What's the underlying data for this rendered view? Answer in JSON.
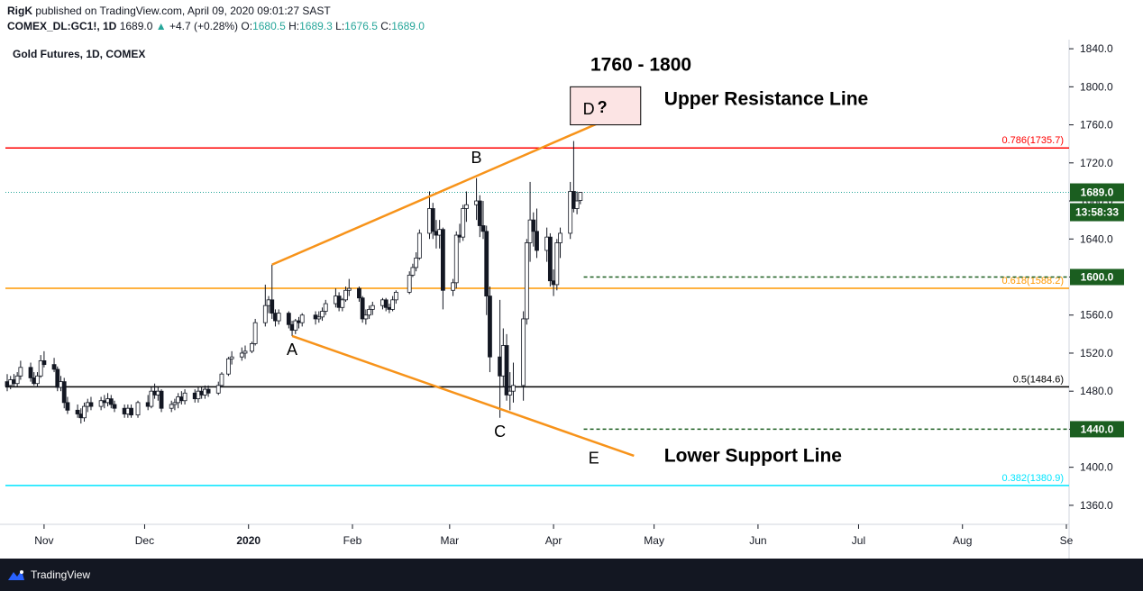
{
  "header": {
    "publisher": "RigK",
    "published_text": "published on TradingView.com, April 09, 2020 09:01:27 SAST",
    "symbol": "COMEX_DL:GC1!, 1D",
    "last": "1689.0",
    "change_arrow": "▲",
    "change": "+4.7 (+0.28%)",
    "o_label": "O:",
    "o_val": "1680.5",
    "h_label": "H:",
    "h_val": "1689.3",
    "l_label": "L:",
    "l_val": "1676.5",
    "c_label": "C:",
    "c_val": "1689.0"
  },
  "chart_title": "Gold Futures, 1D, COMEX",
  "footer": {
    "brand": "TradingView",
    "logo_icon": "tradingview-logo-icon"
  },
  "colors": {
    "up": "#26a69a",
    "down": "#ef5350",
    "wick": "#131722",
    "fib_0786": "#ff0000",
    "fib_0618": "#ff9800",
    "fib_05": "#000000",
    "fib_0382": "#00e5ff",
    "trend": "#f7931a",
    "level_box": "#1b5e20",
    "countdown_box": "#1b5e20"
  },
  "chart_data": {
    "type": "candlestick",
    "title": "Gold Futures, 1D, COMEX",
    "ylim": [
      1340,
      1860
    ],
    "y_ticks": [
      1360,
      1400,
      1440,
      1480,
      1520,
      1560,
      1600,
      1640,
      1680,
      1720,
      1760,
      1800,
      1840
    ],
    "y_tick_labels": [
      "1360.0",
      "1400.0",
      "1440.0",
      "1480.0",
      "1520.0",
      "1560.0",
      "1600.0",
      "1640.0",
      "1680.0",
      "1720.0",
      "1760.0",
      "1800.0",
      "1840.0"
    ],
    "x_start": "2019-10-21",
    "x_end": "2020-09-01",
    "x_ticks": [
      {
        "date": "2019-11-01",
        "label": "Nov",
        "bold": false
      },
      {
        "date": "2019-12-01",
        "label": "Dec",
        "bold": false
      },
      {
        "date": "2020-01-01",
        "label": "2020",
        "bold": true
      },
      {
        "date": "2020-02-01",
        "label": "Feb",
        "bold": false
      },
      {
        "date": "2020-03-01",
        "label": "Mar",
        "bold": false
      },
      {
        "date": "2020-04-01",
        "label": "Apr",
        "bold": false
      },
      {
        "date": "2020-05-01",
        "label": "May",
        "bold": false
      },
      {
        "date": "2020-06-01",
        "label": "Jun",
        "bold": false
      },
      {
        "date": "2020-07-01",
        "label": "Jul",
        "bold": false
      },
      {
        "date": "2020-08-01",
        "label": "Aug",
        "bold": false
      },
      {
        "date": "2020-09-01",
        "label": "Se",
        "bold": false
      }
    ],
    "candles": [
      {
        "d": "2019-10-21",
        "o": 1490,
        "h": 1498,
        "l": 1480,
        "c": 1485
      },
      {
        "d": "2019-10-22",
        "o": 1486,
        "h": 1496,
        "l": 1482,
        "c": 1492
      },
      {
        "d": "2019-10-23",
        "o": 1492,
        "h": 1498,
        "l": 1484,
        "c": 1488
      },
      {
        "d": "2019-10-24",
        "o": 1488,
        "h": 1500,
        "l": 1485,
        "c": 1496
      },
      {
        "d": "2019-10-25",
        "o": 1496,
        "h": 1512,
        "l": 1492,
        "c": 1505
      },
      {
        "d": "2019-10-28",
        "o": 1505,
        "h": 1510,
        "l": 1490,
        "c": 1494
      },
      {
        "d": "2019-10-29",
        "o": 1494,
        "h": 1500,
        "l": 1486,
        "c": 1488
      },
      {
        "d": "2019-10-30",
        "o": 1488,
        "h": 1500,
        "l": 1484,
        "c": 1496
      },
      {
        "d": "2019-10-31",
        "o": 1496,
        "h": 1518,
        "l": 1494,
        "c": 1512
      },
      {
        "d": "2019-11-01",
        "o": 1512,
        "h": 1522,
        "l": 1505,
        "c": 1508
      },
      {
        "d": "2019-11-04",
        "o": 1508,
        "h": 1515,
        "l": 1500,
        "c": 1503
      },
      {
        "d": "2019-11-05",
        "o": 1503,
        "h": 1506,
        "l": 1480,
        "c": 1484
      },
      {
        "d": "2019-11-06",
        "o": 1484,
        "h": 1496,
        "l": 1480,
        "c": 1490
      },
      {
        "d": "2019-11-07",
        "o": 1490,
        "h": 1494,
        "l": 1462,
        "c": 1468
      },
      {
        "d": "2019-11-08",
        "o": 1468,
        "h": 1474,
        "l": 1456,
        "c": 1460
      },
      {
        "d": "2019-11-11",
        "o": 1460,
        "h": 1466,
        "l": 1452,
        "c": 1456
      },
      {
        "d": "2019-11-12",
        "o": 1456,
        "h": 1462,
        "l": 1446,
        "c": 1452
      },
      {
        "d": "2019-11-13",
        "o": 1452,
        "h": 1468,
        "l": 1448,
        "c": 1464
      },
      {
        "d": "2019-11-14",
        "o": 1464,
        "h": 1472,
        "l": 1458,
        "c": 1468
      },
      {
        "d": "2019-11-15",
        "o": 1468,
        "h": 1474,
        "l": 1460,
        "c": 1464
      },
      {
        "d": "2019-11-18",
        "o": 1464,
        "h": 1474,
        "l": 1460,
        "c": 1470
      },
      {
        "d": "2019-11-19",
        "o": 1470,
        "h": 1476,
        "l": 1462,
        "c": 1468
      },
      {
        "d": "2019-11-20",
        "o": 1468,
        "h": 1478,
        "l": 1464,
        "c": 1472
      },
      {
        "d": "2019-11-21",
        "o": 1472,
        "h": 1476,
        "l": 1462,
        "c": 1466
      },
      {
        "d": "2019-11-22",
        "o": 1466,
        "h": 1470,
        "l": 1458,
        "c": 1462
      },
      {
        "d": "2019-11-25",
        "o": 1462,
        "h": 1466,
        "l": 1452,
        "c": 1456
      },
      {
        "d": "2019-11-26",
        "o": 1456,
        "h": 1466,
        "l": 1452,
        "c": 1462
      },
      {
        "d": "2019-11-27",
        "o": 1462,
        "h": 1466,
        "l": 1452,
        "c": 1455
      },
      {
        "d": "2019-11-29",
        "o": 1455,
        "h": 1470,
        "l": 1452,
        "c": 1468
      },
      {
        "d": "2019-12-02",
        "o": 1468,
        "h": 1476,
        "l": 1460,
        "c": 1464
      },
      {
        "d": "2019-12-03",
        "o": 1464,
        "h": 1484,
        "l": 1462,
        "c": 1480
      },
      {
        "d": "2019-12-04",
        "o": 1480,
        "h": 1488,
        "l": 1472,
        "c": 1476
      },
      {
        "d": "2019-12-05",
        "o": 1476,
        "h": 1484,
        "l": 1470,
        "c": 1480
      },
      {
        "d": "2019-12-06",
        "o": 1480,
        "h": 1482,
        "l": 1458,
        "c": 1462
      },
      {
        "d": "2019-12-09",
        "o": 1462,
        "h": 1470,
        "l": 1458,
        "c": 1466
      },
      {
        "d": "2019-12-10",
        "o": 1466,
        "h": 1472,
        "l": 1460,
        "c": 1468
      },
      {
        "d": "2019-12-11",
        "o": 1468,
        "h": 1478,
        "l": 1462,
        "c": 1474
      },
      {
        "d": "2019-12-12",
        "o": 1474,
        "h": 1480,
        "l": 1466,
        "c": 1470
      },
      {
        "d": "2019-12-13",
        "o": 1470,
        "h": 1482,
        "l": 1466,
        "c": 1478
      },
      {
        "d": "2019-12-16",
        "o": 1478,
        "h": 1482,
        "l": 1468,
        "c": 1472
      },
      {
        "d": "2019-12-17",
        "o": 1472,
        "h": 1484,
        "l": 1468,
        "c": 1480
      },
      {
        "d": "2019-12-18",
        "o": 1480,
        "h": 1484,
        "l": 1472,
        "c": 1476
      },
      {
        "d": "2019-12-19",
        "o": 1476,
        "h": 1486,
        "l": 1472,
        "c": 1482
      },
      {
        "d": "2019-12-20",
        "o": 1482,
        "h": 1486,
        "l": 1474,
        "c": 1478
      },
      {
        "d": "2019-12-23",
        "o": 1478,
        "h": 1490,
        "l": 1476,
        "c": 1486
      },
      {
        "d": "2019-12-24",
        "o": 1486,
        "h": 1500,
        "l": 1484,
        "c": 1498
      },
      {
        "d": "2019-12-26",
        "o": 1498,
        "h": 1516,
        "l": 1496,
        "c": 1514
      },
      {
        "d": "2019-12-27",
        "o": 1514,
        "h": 1522,
        "l": 1508,
        "c": 1516
      },
      {
        "d": "2019-12-30",
        "o": 1516,
        "h": 1526,
        "l": 1512,
        "c": 1520
      },
      {
        "d": "2019-12-31",
        "o": 1520,
        "h": 1528,
        "l": 1514,
        "c": 1522
      },
      {
        "d": "2020-01-02",
        "o": 1522,
        "h": 1532,
        "l": 1520,
        "c": 1530
      },
      {
        "d": "2020-01-03",
        "o": 1530,
        "h": 1556,
        "l": 1528,
        "c": 1552
      },
      {
        "d": "2020-01-06",
        "o": 1552,
        "h": 1592,
        "l": 1548,
        "c": 1570
      },
      {
        "d": "2020-01-07",
        "o": 1570,
        "h": 1580,
        "l": 1562,
        "c": 1576
      },
      {
        "d": "2020-01-08",
        "o": 1576,
        "h": 1613,
        "l": 1556,
        "c": 1562
      },
      {
        "d": "2020-01-09",
        "o": 1562,
        "h": 1566,
        "l": 1548,
        "c": 1554
      },
      {
        "d": "2020-01-10",
        "o": 1554,
        "h": 1566,
        "l": 1550,
        "c": 1562
      },
      {
        "d": "2020-01-13",
        "o": 1562,
        "h": 1564,
        "l": 1546,
        "c": 1550
      },
      {
        "d": "2020-01-14",
        "o": 1550,
        "h": 1554,
        "l": 1538,
        "c": 1544
      },
      {
        "d": "2020-01-15",
        "o": 1544,
        "h": 1556,
        "l": 1540,
        "c": 1554
      },
      {
        "d": "2020-01-16",
        "o": 1554,
        "h": 1558,
        "l": 1546,
        "c": 1552
      },
      {
        "d": "2020-01-17",
        "o": 1552,
        "h": 1562,
        "l": 1548,
        "c": 1560
      },
      {
        "d": "2020-01-21",
        "o": 1560,
        "h": 1564,
        "l": 1550,
        "c": 1556
      },
      {
        "d": "2020-01-22",
        "o": 1556,
        "h": 1564,
        "l": 1552,
        "c": 1558
      },
      {
        "d": "2020-01-23",
        "o": 1558,
        "h": 1568,
        "l": 1554,
        "c": 1564
      },
      {
        "d": "2020-01-24",
        "o": 1564,
        "h": 1576,
        "l": 1560,
        "c": 1572
      },
      {
        "d": "2020-01-27",
        "o": 1572,
        "h": 1588,
        "l": 1568,
        "c": 1580
      },
      {
        "d": "2020-01-28",
        "o": 1580,
        "h": 1584,
        "l": 1564,
        "c": 1568
      },
      {
        "d": "2020-01-29",
        "o": 1568,
        "h": 1578,
        "l": 1564,
        "c": 1576
      },
      {
        "d": "2020-01-30",
        "o": 1576,
        "h": 1590,
        "l": 1574,
        "c": 1586
      },
      {
        "d": "2020-01-31",
        "o": 1586,
        "h": 1598,
        "l": 1580,
        "c": 1588
      },
      {
        "d": "2020-02-03",
        "o": 1588,
        "h": 1590,
        "l": 1574,
        "c": 1578
      },
      {
        "d": "2020-02-04",
        "o": 1578,
        "h": 1580,
        "l": 1552,
        "c": 1556
      },
      {
        "d": "2020-02-05",
        "o": 1556,
        "h": 1566,
        "l": 1550,
        "c": 1560
      },
      {
        "d": "2020-02-06",
        "o": 1560,
        "h": 1570,
        "l": 1556,
        "c": 1566
      },
      {
        "d": "2020-02-07",
        "o": 1566,
        "h": 1574,
        "l": 1560,
        "c": 1570
      },
      {
        "d": "2020-02-10",
        "o": 1570,
        "h": 1578,
        "l": 1566,
        "c": 1576
      },
      {
        "d": "2020-02-11",
        "o": 1576,
        "h": 1578,
        "l": 1564,
        "c": 1568
      },
      {
        "d": "2020-02-12",
        "o": 1568,
        "h": 1572,
        "l": 1562,
        "c": 1566
      },
      {
        "d": "2020-02-13",
        "o": 1566,
        "h": 1580,
        "l": 1564,
        "c": 1576
      },
      {
        "d": "2020-02-14",
        "o": 1576,
        "h": 1586,
        "l": 1572,
        "c": 1584
      },
      {
        "d": "2020-02-18",
        "o": 1584,
        "h": 1606,
        "l": 1582,
        "c": 1602
      },
      {
        "d": "2020-02-19",
        "o": 1602,
        "h": 1614,
        "l": 1600,
        "c": 1610
      },
      {
        "d": "2020-02-20",
        "o": 1610,
        "h": 1626,
        "l": 1606,
        "c": 1620
      },
      {
        "d": "2020-02-21",
        "o": 1620,
        "h": 1650,
        "l": 1618,
        "c": 1646
      },
      {
        "d": "2020-02-24",
        "o": 1646,
        "h": 1690,
        "l": 1640,
        "c": 1672
      },
      {
        "d": "2020-02-25",
        "o": 1672,
        "h": 1678,
        "l": 1640,
        "c": 1648
      },
      {
        "d": "2020-02-26",
        "o": 1648,
        "h": 1660,
        "l": 1630,
        "c": 1644
      },
      {
        "d": "2020-02-27",
        "o": 1644,
        "h": 1660,
        "l": 1630,
        "c": 1650
      },
      {
        "d": "2020-02-28",
        "o": 1650,
        "h": 1652,
        "l": 1566,
        "c": 1586
      },
      {
        "d": "2020-03-02",
        "o": 1586,
        "h": 1598,
        "l": 1580,
        "c": 1594
      },
      {
        "d": "2020-03-03",
        "o": 1594,
        "h": 1648,
        "l": 1588,
        "c": 1644
      },
      {
        "d": "2020-03-04",
        "o": 1644,
        "h": 1656,
        "l": 1636,
        "c": 1642
      },
      {
        "d": "2020-03-05",
        "o": 1642,
        "h": 1676,
        "l": 1638,
        "c": 1672
      },
      {
        "d": "2020-03-06",
        "o": 1672,
        "h": 1690,
        "l": 1658,
        "c": 1676
      },
      {
        "d": "2020-03-09",
        "o": 1676,
        "h": 1704,
        "l": 1660,
        "c": 1680
      },
      {
        "d": "2020-03-10",
        "o": 1680,
        "h": 1686,
        "l": 1642,
        "c": 1654
      },
      {
        "d": "2020-03-11",
        "o": 1654,
        "h": 1680,
        "l": 1640,
        "c": 1648
      },
      {
        "d": "2020-03-12",
        "o": 1648,
        "h": 1654,
        "l": 1560,
        "c": 1580
      },
      {
        "d": "2020-03-13",
        "o": 1580,
        "h": 1590,
        "l": 1500,
        "c": 1516
      },
      {
        "d": "2020-03-16",
        "o": 1516,
        "h": 1576,
        "l": 1452,
        "c": 1496
      },
      {
        "d": "2020-03-17",
        "o": 1496,
        "h": 1546,
        "l": 1484,
        "c": 1528
      },
      {
        "d": "2020-03-18",
        "o": 1528,
        "h": 1540,
        "l": 1470,
        "c": 1476
      },
      {
        "d": "2020-03-19",
        "o": 1476,
        "h": 1500,
        "l": 1460,
        "c": 1480
      },
      {
        "d": "2020-03-20",
        "o": 1480,
        "h": 1510,
        "l": 1468,
        "c": 1486
      },
      {
        "d": "2020-03-23",
        "o": 1486,
        "h": 1564,
        "l": 1470,
        "c": 1556
      },
      {
        "d": "2020-03-24",
        "o": 1556,
        "h": 1640,
        "l": 1550,
        "c": 1636
      },
      {
        "d": "2020-03-25",
        "o": 1636,
        "h": 1700,
        "l": 1616,
        "c": 1660
      },
      {
        "d": "2020-03-26",
        "o": 1660,
        "h": 1668,
        "l": 1632,
        "c": 1648
      },
      {
        "d": "2020-03-27",
        "o": 1648,
        "h": 1672,
        "l": 1620,
        "c": 1628
      },
      {
        "d": "2020-03-30",
        "o": 1628,
        "h": 1652,
        "l": 1616,
        "c": 1642
      },
      {
        "d": "2020-03-31",
        "o": 1642,
        "h": 1646,
        "l": 1590,
        "c": 1596
      },
      {
        "d": "2020-04-01",
        "o": 1596,
        "h": 1608,
        "l": 1580,
        "c": 1592
      },
      {
        "d": "2020-04-02",
        "o": 1592,
        "h": 1640,
        "l": 1586,
        "c": 1636
      },
      {
        "d": "2020-04-03",
        "o": 1636,
        "h": 1652,
        "l": 1620,
        "c": 1646
      },
      {
        "d": "2020-04-06",
        "o": 1646,
        "h": 1700,
        "l": 1640,
        "c": 1690
      },
      {
        "d": "2020-04-07",
        "o": 1690,
        "h": 1743,
        "l": 1668,
        "c": 1672
      },
      {
        "d": "2020-04-08",
        "o": 1672,
        "h": 1690,
        "l": 1666,
        "c": 1680
      },
      {
        "d": "2020-04-09",
        "o": 1680.5,
        "h": 1689.3,
        "l": 1676.5,
        "c": 1689.0
      }
    ],
    "fib_levels": [
      {
        "ratio": "0.786",
        "value": 1735.7,
        "label": "0.786(1735.7)",
        "color": "#ff0000"
      },
      {
        "ratio": "0.618",
        "value": 1588.2,
        "label": "0.618(1588.2)",
        "color": "#ff9800"
      },
      {
        "ratio": "0.5",
        "value": 1484.6,
        "label": "0.5(1484.6)",
        "color": "#000000"
      },
      {
        "ratio": "0.382",
        "value": 1380.9,
        "label": "0.382(1380.9)",
        "color": "#00e5ff"
      }
    ],
    "last_price": {
      "value": 1689.0,
      "label": "1689.0",
      "countdown": "13:58:33"
    },
    "dotted_levels": [
      {
        "value": 1600.0,
        "label": "1600.0",
        "from": "2020-04-10"
      },
      {
        "value": 1440.0,
        "label": "1440.0",
        "from": "2020-04-10"
      }
    ],
    "trendlines": [
      {
        "name": "upper",
        "from": {
          "d": "2020-01-08",
          "v": 1613
        },
        "to": {
          "d": "2020-04-25",
          "v": 1778
        }
      },
      {
        "name": "lower",
        "from": {
          "d": "2020-01-14",
          "v": 1538
        },
        "to": {
          "d": "2020-04-25",
          "v": 1412
        }
      }
    ],
    "point_labels": [
      {
        "text": "A",
        "d": "2020-01-14",
        "v": 1518
      },
      {
        "text": "B",
        "d": "2020-03-09",
        "v": 1720
      },
      {
        "text": "C",
        "d": "2020-03-16",
        "v": 1432
      },
      {
        "text": "E",
        "d": "2020-04-13",
        "v": 1404
      }
    ],
    "target_zone": {
      "from_d": "2020-04-06",
      "to_d": "2020-04-27",
      "top": 1800,
      "bottom": 1760,
      "label": "D",
      "question": "?"
    },
    "annotations": [
      {
        "text": "1760 - 1800",
        "d": "2020-04-12",
        "v": 1817
      },
      {
        "text": "Upper Resistance Line",
        "d": "2020-05-04",
        "v": 1781
      },
      {
        "text": "Lower Support Line",
        "d": "2020-05-04",
        "v": 1406
      }
    ]
  }
}
